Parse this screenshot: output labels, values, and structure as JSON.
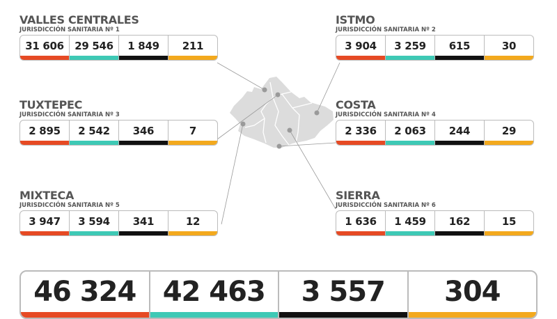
{
  "colors": {
    "confirmed": "#e64a24",
    "recovered": "#3ec9b5",
    "deaths": "#111111",
    "active": "#f3a91d"
  },
  "regions": [
    {
      "title": "VALLES CENTRALES",
      "subtitle": "JURISDICCIÓN SANITARIA Nº 1",
      "values": [
        "31 606",
        "29 546",
        "1 849",
        "211"
      ]
    },
    {
      "title": "ISTMO",
      "subtitle": "JURISDICCIÓN SANITARIA Nº 2",
      "values": [
        "3 904",
        "3 259",
        "615",
        "30"
      ]
    },
    {
      "title": "TUXTEPEC",
      "subtitle": "JURISDICCIÓN SANITARIA Nº 3",
      "values": [
        "2 895",
        "2 542",
        "346",
        "7"
      ]
    },
    {
      "title": "COSTA",
      "subtitle": "JURISDICCIÓN SANITARIA Nº 4",
      "values": [
        "2 336",
        "2 063",
        "244",
        "29"
      ]
    },
    {
      "title": "MIXTECA",
      "subtitle": "JURISDICCIÓN SANITARIA Nº 5",
      "values": [
        "3 947",
        "3 594",
        "341",
        "12"
      ]
    },
    {
      "title": "SIERRA",
      "subtitle": "JURISDICCIÓN SANITARIA Nº 6",
      "values": [
        "1 636",
        "1 459",
        "162",
        "15"
      ]
    }
  ],
  "totals": [
    "46 324",
    "42 463",
    "3 557",
    "304"
  ]
}
